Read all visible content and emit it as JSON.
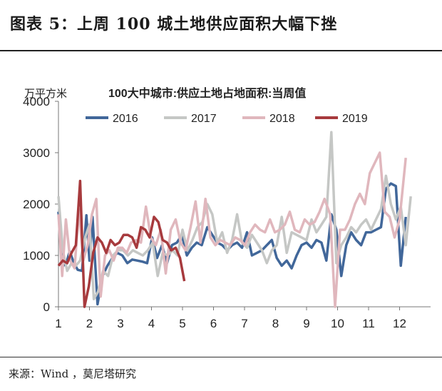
{
  "figure_title": "图表 5：上周 100 城土地供应面积大幅下挫",
  "source": "来源：Wind ，莫尼塔研究",
  "chart_data": {
    "type": "line",
    "title": "100大中城市:供应土地占地面积:当周值",
    "ylabel": "万平方米",
    "xlabel": "",
    "ylim": [
      0,
      4000
    ],
    "yticks": [
      0,
      1000,
      2000,
      3000,
      4000
    ],
    "xlim": [
      1,
      13
    ],
    "xticks": [
      1,
      2,
      3,
      4,
      5,
      6,
      7,
      8,
      9,
      10,
      11,
      12
    ],
    "grid": false,
    "legend": "top",
    "series": [
      {
        "name": "2016",
        "color": "#41679a",
        "points": [
          [
            1.0,
            1850
          ],
          [
            1.12,
            800
          ],
          [
            1.24,
            820
          ],
          [
            1.36,
            1080
          ],
          [
            1.5,
            850
          ],
          [
            1.62,
            720
          ],
          [
            1.76,
            700
          ],
          [
            1.9,
            1780
          ],
          [
            2.0,
            900
          ],
          [
            2.1,
            1750
          ],
          [
            2.26,
            50
          ],
          [
            2.42,
            600
          ],
          [
            2.58,
            800
          ],
          [
            2.74,
            950
          ],
          [
            2.9,
            1050
          ],
          [
            3.06,
            1000
          ],
          [
            3.22,
            850
          ],
          [
            3.38,
            920
          ],
          [
            3.54,
            900
          ],
          [
            3.7,
            880
          ],
          [
            3.86,
            850
          ],
          [
            4.02,
            1350
          ],
          [
            4.18,
            950
          ],
          [
            4.34,
            1200
          ],
          [
            4.5,
            850
          ],
          [
            4.66,
            1200
          ],
          [
            4.82,
            1250
          ],
          [
            4.98,
            1400
          ],
          [
            5.14,
            1000
          ],
          [
            5.3,
            1150
          ],
          [
            5.46,
            1250
          ],
          [
            5.62,
            1200
          ],
          [
            5.8,
            1550
          ],
          [
            5.96,
            1400
          ],
          [
            6.12,
            1250
          ],
          [
            6.28,
            1200
          ],
          [
            6.44,
            1100
          ],
          [
            6.6,
            1200
          ],
          [
            6.76,
            1250
          ],
          [
            6.92,
            1150
          ],
          [
            7.08,
            1450
          ],
          [
            7.24,
            1000
          ],
          [
            7.4,
            1050
          ],
          [
            7.56,
            1100
          ],
          [
            7.72,
            1200
          ],
          [
            7.88,
            1300
          ],
          [
            8.04,
            950
          ],
          [
            8.2,
            800
          ],
          [
            8.36,
            900
          ],
          [
            8.52,
            750
          ],
          [
            8.68,
            1000
          ],
          [
            8.84,
            1200
          ],
          [
            9.0,
            1250
          ],
          [
            9.16,
            1150
          ],
          [
            9.32,
            1300
          ],
          [
            9.48,
            1250
          ],
          [
            9.64,
            900
          ],
          [
            9.8,
            1800
          ],
          [
            9.96,
            1500
          ],
          [
            10.12,
            600
          ],
          [
            10.28,
            1200
          ],
          [
            10.44,
            1450
          ],
          [
            10.6,
            1300
          ],
          [
            10.76,
            1200
          ],
          [
            10.92,
            1450
          ],
          [
            11.08,
            1450
          ],
          [
            11.24,
            1500
          ],
          [
            11.4,
            1550
          ],
          [
            11.56,
            2300
          ],
          [
            11.72,
            2400
          ],
          [
            11.88,
            2350
          ],
          [
            12.04,
            800
          ],
          [
            12.2,
            1750
          ]
        ]
      },
      {
        "name": "2017",
        "color": "#c5c7c5",
        "points": [
          [
            1.0,
            2150
          ],
          [
            1.14,
            1100
          ],
          [
            1.28,
            700
          ],
          [
            1.42,
            850
          ],
          [
            1.56,
            800
          ],
          [
            1.7,
            900
          ],
          [
            1.86,
            1350
          ],
          [
            2.0,
            1600
          ],
          [
            2.14,
            150
          ],
          [
            2.28,
            300
          ],
          [
            2.44,
            700
          ],
          [
            2.6,
            600
          ],
          [
            2.76,
            1000
          ],
          [
            2.92,
            1100
          ],
          [
            3.08,
            1100
          ],
          [
            3.24,
            1000
          ],
          [
            3.4,
            1100
          ],
          [
            3.56,
            1050
          ],
          [
            3.72,
            1000
          ],
          [
            3.88,
            1100
          ],
          [
            4.04,
            1250
          ],
          [
            4.2,
            600
          ],
          [
            4.36,
            1050
          ],
          [
            4.52,
            1000
          ],
          [
            4.68,
            1100
          ],
          [
            4.84,
            1000
          ],
          [
            5.0,
            1500
          ],
          [
            5.16,
            1100
          ],
          [
            5.32,
            1300
          ],
          [
            5.48,
            1550
          ],
          [
            5.64,
            1650
          ],
          [
            5.8,
            2000
          ],
          [
            5.96,
            1800
          ],
          [
            6.12,
            1250
          ],
          [
            6.28,
            1450
          ],
          [
            6.44,
            1050
          ],
          [
            6.6,
            1300
          ],
          [
            6.76,
            1800
          ],
          [
            6.92,
            1250
          ],
          [
            7.08,
            1150
          ],
          [
            7.24,
            1400
          ],
          [
            7.4,
            1250
          ],
          [
            7.56,
            1100
          ],
          [
            7.72,
            850
          ],
          [
            7.88,
            1100
          ],
          [
            8.04,
            1200
          ],
          [
            8.2,
            1750
          ],
          [
            8.36,
            1050
          ],
          [
            8.52,
            1450
          ],
          [
            8.68,
            1400
          ],
          [
            8.84,
            1350
          ],
          [
            9.0,
            1300
          ],
          [
            9.16,
            1700
          ],
          [
            9.32,
            1450
          ],
          [
            9.48,
            1600
          ],
          [
            9.64,
            1750
          ],
          [
            9.8,
            3400
          ],
          [
            9.96,
            850
          ],
          [
            10.12,
            1200
          ],
          [
            10.28,
            1350
          ],
          [
            10.44,
            1550
          ],
          [
            10.6,
            1450
          ],
          [
            10.76,
            1600
          ],
          [
            10.92,
            1700
          ],
          [
            11.08,
            1500
          ],
          [
            11.24,
            1700
          ],
          [
            11.4,
            1900
          ],
          [
            11.56,
            2550
          ],
          [
            11.72,
            2000
          ],
          [
            11.88,
            1700
          ],
          [
            12.04,
            1950
          ],
          [
            12.2,
            1200
          ],
          [
            12.36,
            2150
          ]
        ]
      },
      {
        "name": "2018",
        "color": "#e0b7bd",
        "points": [
          [
            1.0,
            1800
          ],
          [
            1.12,
            600
          ],
          [
            1.24,
            1700
          ],
          [
            1.38,
            900
          ],
          [
            1.52,
            750
          ],
          [
            1.66,
            1900
          ],
          [
            1.8,
            900
          ],
          [
            1.94,
            1200
          ],
          [
            2.08,
            1800
          ],
          [
            2.22,
            2100
          ],
          [
            2.36,
            200
          ],
          [
            2.5,
            1000
          ],
          [
            2.64,
            1100
          ],
          [
            2.78,
            900
          ],
          [
            2.92,
            1150
          ],
          [
            3.06,
            1150
          ],
          [
            3.2,
            1050
          ],
          [
            3.34,
            1250
          ],
          [
            3.5,
            1300
          ],
          [
            3.66,
            1250
          ],
          [
            3.82,
            1950
          ],
          [
            3.98,
            1350
          ],
          [
            4.14,
            1200
          ],
          [
            4.3,
            1500
          ],
          [
            4.46,
            650
          ],
          [
            4.62,
            1500
          ],
          [
            4.78,
            1700
          ],
          [
            4.94,
            1250
          ],
          [
            5.1,
            1100
          ],
          [
            5.26,
            1550
          ],
          [
            5.42,
            2050
          ],
          [
            5.58,
            1250
          ],
          [
            5.74,
            2100
          ],
          [
            5.9,
            1350
          ],
          [
            6.06,
            1200
          ],
          [
            6.22,
            1300
          ],
          [
            6.38,
            1250
          ],
          [
            6.54,
            1200
          ],
          [
            6.7,
            1350
          ],
          [
            6.86,
            1300
          ],
          [
            7.02,
            1200
          ],
          [
            7.18,
            1450
          ],
          [
            7.34,
            1600
          ],
          [
            7.5,
            1500
          ],
          [
            7.66,
            1450
          ],
          [
            7.82,
            1700
          ],
          [
            7.98,
            1450
          ],
          [
            8.14,
            1500
          ],
          [
            8.3,
            1600
          ],
          [
            8.46,
            1850
          ],
          [
            8.62,
            1500
          ],
          [
            8.78,
            1450
          ],
          [
            8.94,
            1700
          ],
          [
            9.1,
            1600
          ],
          [
            9.26,
            1650
          ],
          [
            9.42,
            1850
          ],
          [
            9.58,
            2100
          ],
          [
            9.76,
            1800
          ],
          [
            9.92,
            0
          ],
          [
            10.08,
            1500
          ],
          [
            10.24,
            1500
          ],
          [
            10.4,
            1700
          ],
          [
            10.56,
            2000
          ],
          [
            10.72,
            2200
          ],
          [
            10.88,
            2000
          ],
          [
            11.04,
            2600
          ],
          [
            11.2,
            2800
          ],
          [
            11.36,
            3000
          ],
          [
            11.52,
            1850
          ],
          [
            11.68,
            1750
          ],
          [
            11.84,
            1350
          ],
          [
            12.0,
            1700
          ],
          [
            12.2,
            2900
          ]
        ]
      },
      {
        "name": "2019",
        "color": "#a73a3d",
        "points": [
          [
            1.0,
            800
          ],
          [
            1.14,
            900
          ],
          [
            1.28,
            850
          ],
          [
            1.42,
            1050
          ],
          [
            1.56,
            1200
          ],
          [
            1.7,
            2450
          ],
          [
            1.84,
            0
          ],
          [
            1.98,
            400
          ],
          [
            2.12,
            1050
          ],
          [
            2.26,
            1350
          ],
          [
            2.4,
            1250
          ],
          [
            2.54,
            1050
          ],
          [
            2.68,
            1300
          ],
          [
            2.82,
            1200
          ],
          [
            2.96,
            1250
          ],
          [
            3.1,
            1400
          ],
          [
            3.24,
            1400
          ],
          [
            3.38,
            1350
          ],
          [
            3.52,
            1150
          ],
          [
            3.66,
            1550
          ],
          [
            3.8,
            1500
          ],
          [
            3.94,
            1350
          ],
          [
            4.08,
            1750
          ],
          [
            4.22,
            1650
          ],
          [
            4.36,
            1300
          ],
          [
            4.5,
            1250
          ],
          [
            4.64,
            1100
          ],
          [
            4.78,
            1150
          ],
          [
            4.92,
            950
          ],
          [
            5.06,
            500
          ]
        ]
      }
    ]
  }
}
